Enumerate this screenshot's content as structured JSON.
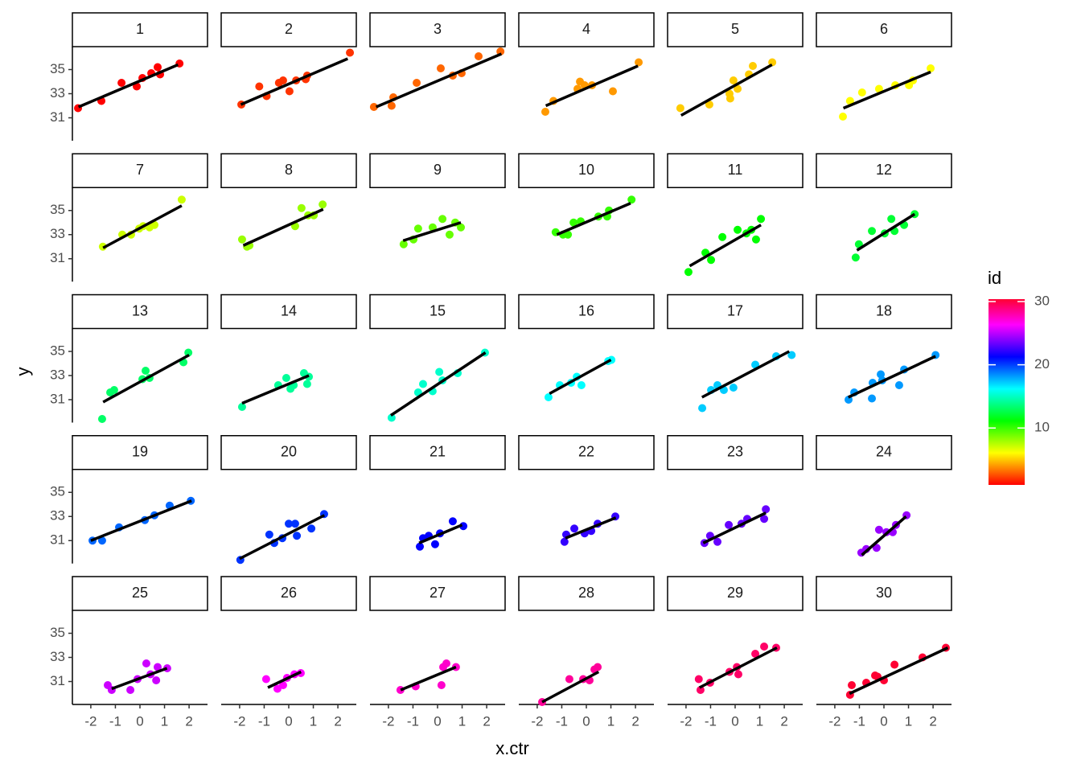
{
  "chart_data": {
    "type": "scatter",
    "x_label": "x.ctr",
    "y_label": "y",
    "xlim": [
      -2.75,
      2.75
    ],
    "ylim": [
      29.1,
      36.9
    ],
    "xticks": [
      -2,
      -1,
      0,
      1,
      2
    ],
    "yticks": [
      31,
      33,
      35
    ],
    "colorbar": {
      "title": "id",
      "lim": [
        1,
        30
      ],
      "ticks": [
        10,
        20,
        30
      ]
    },
    "facets": [
      {
        "name": "1",
        "color": "hsl(0,100%,50%)",
        "x": [
          -2.52,
          -1.57,
          -0.75,
          -0.13,
          0.1,
          0.46,
          0.72,
          0.82,
          1.61
        ],
        "y": [
          31.8,
          32.4,
          33.9,
          33.6,
          34.3,
          34.7,
          35.2,
          34.6,
          35.5
        ],
        "fit_x": [
          -2.5,
          1.55
        ],
        "fit_y": [
          31.9,
          35.4
        ]
      },
      {
        "name": "2",
        "color": "hsl(12,100%,50%)",
        "x": [
          -1.93,
          -1.2,
          -0.9,
          -0.4,
          -0.23,
          0.03,
          0.3,
          0.69,
          0.75,
          2.49
        ],
        "y": [
          32.1,
          33.6,
          32.8,
          33.9,
          34.1,
          33.2,
          34.1,
          34.2,
          34.5,
          36.4
        ],
        "fit_x": [
          -1.95,
          2.4
        ],
        "fit_y": [
          32.1,
          35.9
        ]
      },
      {
        "name": "3",
        "color": "hsl(24,100%,50%)",
        "x": [
          -2.59,
          -1.87,
          -1.8,
          -0.85,
          0.13,
          0.62,
          0.98,
          1.67,
          2.56
        ],
        "y": [
          31.9,
          32.0,
          32.7,
          33.9,
          35.1,
          34.5,
          34.7,
          36.1,
          36.5
        ],
        "fit_x": [
          -2.5,
          2.6
        ],
        "fit_y": [
          31.9,
          36.3
        ]
      },
      {
        "name": "4",
        "color": "hsl(36,100%,50%)",
        "x": [
          -1.67,
          -1.34,
          -0.36,
          -0.26,
          -0.07,
          0.23,
          1.08,
          2.13
        ],
        "y": [
          31.5,
          32.4,
          33.4,
          34.0,
          33.7,
          33.7,
          33.2,
          35.6
        ],
        "fit_x": [
          -1.65,
          2.1
        ],
        "fit_y": [
          32.0,
          35.3
        ]
      },
      {
        "name": "5",
        "color": "hsl(48,100%,50%)",
        "x": [
          -2.23,
          -1.05,
          -0.23,
          -0.2,
          -0.07,
          0.1,
          0.56,
          0.72,
          1.51
        ],
        "y": [
          31.8,
          32.1,
          33.0,
          32.6,
          34.1,
          33.4,
          34.6,
          35.3,
          35.6
        ],
        "fit_x": [
          -2.2,
          1.5
        ],
        "fit_y": [
          31.2,
          35.4
        ]
      },
      {
        "name": "6",
        "color": "hsl(60,100%,50%)",
        "x": [
          -1.67,
          -1.38,
          -0.89,
          -0.2,
          0.46,
          1.02,
          1.18,
          1.9
        ],
        "y": [
          31.1,
          32.4,
          33.1,
          33.4,
          33.7,
          33.7,
          34.1,
          35.1
        ],
        "fit_x": [
          -1.65,
          1.9
        ],
        "fit_y": [
          31.8,
          34.8
        ]
      },
      {
        "name": "7",
        "color": "hsl(72,100%,50%)",
        "x": [
          -1.51,
          -0.72,
          -0.36,
          -0.03,
          0.13,
          0.39,
          0.59,
          1.7
        ],
        "y": [
          32.0,
          33.0,
          33.0,
          33.5,
          33.7,
          33.6,
          33.8,
          35.9
        ],
        "fit_x": [
          -1.5,
          1.7
        ],
        "fit_y": [
          31.9,
          35.4
        ]
      },
      {
        "name": "8",
        "color": "hsl(84,100%,50%)",
        "x": [
          -1.9,
          -1.7,
          -1.6,
          0.26,
          0.52,
          0.79,
          1.02,
          1.38
        ],
        "y": [
          32.6,
          32.0,
          32.1,
          33.7,
          35.2,
          34.6,
          34.6,
          35.5
        ],
        "fit_x": [
          -1.85,
          1.4
        ],
        "fit_y": [
          32.1,
          35.1
        ]
      },
      {
        "name": "9",
        "color": "hsl(96,100%,50%)",
        "x": [
          -1.38,
          -0.98,
          -0.79,
          -0.2,
          0.2,
          0.49,
          0.72,
          0.95
        ],
        "y": [
          32.2,
          32.6,
          33.5,
          33.6,
          34.3,
          33.0,
          34.0,
          33.6
        ],
        "fit_x": [
          -1.4,
          0.95
        ],
        "fit_y": [
          32.5,
          34.0
        ]
      },
      {
        "name": "10",
        "color": "hsl(108,100%,50%)",
        "x": [
          -1.25,
          -0.95,
          -0.75,
          -0.52,
          -0.23,
          0.49,
          0.85,
          0.92,
          1.84
        ],
        "y": [
          33.2,
          33.0,
          33.0,
          34.0,
          34.1,
          34.5,
          34.5,
          35.0,
          35.9
        ],
        "fit_x": [
          -1.2,
          1.8
        ],
        "fit_y": [
          33.0,
          35.6
        ]
      },
      {
        "name": "11",
        "color": "hsl(120,100%,50%)",
        "x": [
          -1.9,
          -1.21,
          -0.98,
          -0.52,
          0.1,
          0.46,
          0.66,
          0.85,
          1.05
        ],
        "y": [
          29.9,
          31.5,
          30.9,
          32.8,
          33.4,
          33.1,
          33.4,
          32.6,
          34.3
        ],
        "fit_x": [
          -1.85,
          1.05
        ],
        "fit_y": [
          30.4,
          33.8
        ]
      },
      {
        "name": "12",
        "color": "hsl(132,100%,50%)",
        "x": [
          -1.15,
          -1.02,
          -0.49,
          0.03,
          0.3,
          0.43,
          0.82,
          1.25
        ],
        "y": [
          31.1,
          32.2,
          33.3,
          33.1,
          34.3,
          33.3,
          33.8,
          34.7
        ],
        "fit_x": [
          -1.1,
          1.25
        ],
        "fit_y": [
          31.7,
          34.7
        ]
      },
      {
        "name": "13",
        "color": "hsl(144,100%,50%)",
        "x": [
          -1.54,
          -1.21,
          -1.05,
          0.1,
          0.23,
          0.39,
          1.77,
          1.97
        ],
        "y": [
          29.4,
          31.6,
          31.8,
          32.7,
          33.4,
          32.8,
          34.1,
          34.9
        ],
        "fit_x": [
          -1.5,
          2.0
        ],
        "fit_y": [
          30.8,
          34.7
        ]
      },
      {
        "name": "14",
        "color": "hsl(156,100%,50%)",
        "x": [
          -1.9,
          -0.43,
          -0.1,
          0.07,
          0.2,
          0.62,
          0.75,
          0.82
        ],
        "y": [
          30.4,
          32.2,
          32.8,
          31.9,
          32.2,
          33.2,
          32.3,
          32.9
        ],
        "fit_x": [
          -1.9,
          0.82
        ],
        "fit_y": [
          30.7,
          33.0
        ]
      },
      {
        "name": "15",
        "color": "hsl(168,100%,50%)",
        "x": [
          -1.87,
          -0.79,
          -0.59,
          -0.2,
          0.07,
          0.2,
          0.82,
          1.93
        ],
        "y": [
          29.5,
          31.6,
          32.3,
          31.7,
          33.3,
          32.6,
          33.2,
          34.9
        ],
        "fit_x": [
          -1.9,
          1.95
        ],
        "fit_y": [
          29.7,
          34.9
        ]
      },
      {
        "name": "16",
        "color": "hsl(180,100%,50%)",
        "x": [
          -1.54,
          -1.08,
          -0.62,
          -0.39,
          -0.2,
          0.89,
          1.02
        ],
        "y": [
          31.2,
          32.2,
          32.4,
          32.9,
          32.2,
          34.2,
          34.3
        ],
        "fit_x": [
          -1.5,
          1.0
        ],
        "fit_y": [
          31.5,
          34.3
        ]
      },
      {
        "name": "17",
        "color": "hsl(192,100%,50%)",
        "x": [
          -1.34,
          -0.98,
          -0.72,
          -0.46,
          -0.07,
          0.82,
          1.67,
          2.3
        ],
        "y": [
          30.3,
          31.8,
          32.2,
          31.8,
          32.0,
          33.9,
          34.6,
          34.7
        ],
        "fit_x": [
          -1.35,
          2.2
        ],
        "fit_y": [
          31.2,
          35.0
        ]
      },
      {
        "name": "18",
        "color": "hsl(204,100%,50%)",
        "x": [
          -1.44,
          -1.21,
          -0.49,
          -0.46,
          -0.13,
          -0.07,
          0.62,
          0.82,
          2.1
        ],
        "y": [
          31.0,
          31.6,
          31.1,
          32.4,
          33.1,
          32.6,
          32.2,
          33.5,
          34.7
        ],
        "fit_x": [
          -1.45,
          2.1
        ],
        "fit_y": [
          31.2,
          34.6
        ]
      },
      {
        "name": "19",
        "color": "hsl(216,100%,50%)",
        "x": [
          -1.93,
          -1.54,
          -0.85,
          0.2,
          0.59,
          1.21,
          2.07
        ],
        "y": [
          31.0,
          31.0,
          32.1,
          32.7,
          33.1,
          33.9,
          34.3
        ],
        "fit_x": [
          -2.0,
          2.1
        ],
        "fit_y": [
          31.0,
          34.3
        ]
      },
      {
        "name": "20",
        "color": "hsl(228,100%,50%)",
        "x": [
          -1.97,
          -0.79,
          -0.59,
          -0.26,
          0,
          0.26,
          0.33,
          0.92,
          1.44
        ],
        "y": [
          29.4,
          31.5,
          30.8,
          31.2,
          32.4,
          32.4,
          31.4,
          32.0,
          33.2
        ],
        "fit_x": [
          -2.0,
          1.45
        ],
        "fit_y": [
          29.5,
          33.1
        ]
      },
      {
        "name": "21",
        "color": "hsl(240,100%,50%)",
        "x": [
          -0.72,
          -0.59,
          -0.36,
          -0.1,
          0.1,
          0.62,
          1.05
        ],
        "y": [
          30.5,
          31.2,
          31.4,
          30.7,
          31.6,
          32.6,
          32.2
        ],
        "fit_x": [
          -0.75,
          1.0
        ],
        "fit_y": [
          30.8,
          32.3
        ]
      },
      {
        "name": "22",
        "color": "hsl(252,100%,50%)",
        "x": [
          -0.89,
          -0.82,
          -0.49,
          -0.07,
          0.2,
          0.46,
          1.18
        ],
        "y": [
          30.9,
          31.5,
          32.0,
          31.6,
          31.8,
          32.4,
          33.0
        ],
        "fit_x": [
          -0.85,
          1.2
        ],
        "fit_y": [
          31.2,
          32.9
        ]
      },
      {
        "name": "23",
        "color": "hsl(264,100%,50%)",
        "x": [
          -1.25,
          -1.02,
          -0.72,
          -0.26,
          0.26,
          0.49,
          1.18,
          1.25
        ],
        "y": [
          30.8,
          31.4,
          30.9,
          32.3,
          32.4,
          32.8,
          32.8,
          33.6
        ],
        "fit_x": [
          -1.3,
          1.25
        ],
        "fit_y": [
          30.8,
          33.3
        ]
      },
      {
        "name": "24",
        "color": "hsl(276,100%,50%)",
        "x": [
          -0.92,
          -0.72,
          -0.3,
          -0.2,
          0.1,
          0.36,
          0.49,
          0.92
        ],
        "y": [
          30.0,
          30.3,
          30.4,
          31.9,
          31.7,
          31.7,
          32.3,
          33.1
        ],
        "fit_x": [
          -0.9,
          0.9
        ],
        "fit_y": [
          29.8,
          33.0
        ]
      },
      {
        "name": "25",
        "color": "hsl(288,100%,50%)",
        "x": [
          -1.31,
          -1.15,
          -0.39,
          -0.1,
          0.26,
          0.43,
          0.66,
          0.72,
          1.11
        ],
        "y": [
          30.7,
          30.3,
          30.3,
          31.2,
          32.5,
          31.6,
          31.1,
          32.2,
          32.1
        ],
        "fit_x": [
          -1.15,
          1.1
        ],
        "fit_y": [
          30.4,
          32.1
        ]
      },
      {
        "name": "26",
        "color": "hsl(300,100%,50%)",
        "x": [
          -0.92,
          -0.46,
          -0.23,
          -0.07,
          0.23,
          0.49
        ],
        "y": [
          31.2,
          30.4,
          30.7,
          31.3,
          31.6,
          31.7
        ],
        "fit_x": [
          -0.85,
          0.5
        ],
        "fit_y": [
          30.5,
          31.8
        ]
      },
      {
        "name": "27",
        "color": "hsl(312,100%,50%)",
        "x": [
          -1.51,
          -0.89,
          0.16,
          0.23,
          0.36,
          0.75
        ],
        "y": [
          30.3,
          30.6,
          30.7,
          32.2,
          32.5,
          32.2
        ],
        "fit_x": [
          -1.5,
          0.75
        ],
        "fit_y": [
          30.3,
          32.2
        ]
      },
      {
        "name": "28",
        "color": "hsl(324,100%,50%)",
        "x": [
          -1.8,
          -0.69,
          -0.13,
          0.13,
          0.33,
          0.46
        ],
        "y": [
          29.3,
          31.2,
          31.2,
          31.1,
          32.0,
          32.2
        ],
        "fit_x": [
          -1.8,
          0.5
        ],
        "fit_y": [
          29.3,
          31.8
        ]
      },
      {
        "name": "29",
        "color": "hsl(336,100%,50%)",
        "x": [
          -1.48,
          -1.41,
          -1.02,
          -0.23,
          0.07,
          0.13,
          0.82,
          1.18,
          1.67
        ],
        "y": [
          31.2,
          30.3,
          30.9,
          31.8,
          32.2,
          31.6,
          33.3,
          33.9,
          33.8
        ],
        "fit_x": [
          -1.45,
          1.7
        ],
        "fit_y": [
          30.5,
          33.8
        ]
      },
      {
        "name": "30",
        "color": "hsl(348,100%,50%)",
        "x": [
          -1.38,
          -1.31,
          -0.72,
          -0.36,
          -0.26,
          0,
          0.43,
          1.57,
          2.52
        ],
        "y": [
          29.9,
          30.7,
          30.9,
          31.5,
          31.4,
          31.1,
          32.4,
          33.0,
          33.8
        ],
        "fit_x": [
          -1.4,
          2.6
        ],
        "fit_y": [
          30.0,
          33.8
        ]
      }
    ]
  }
}
